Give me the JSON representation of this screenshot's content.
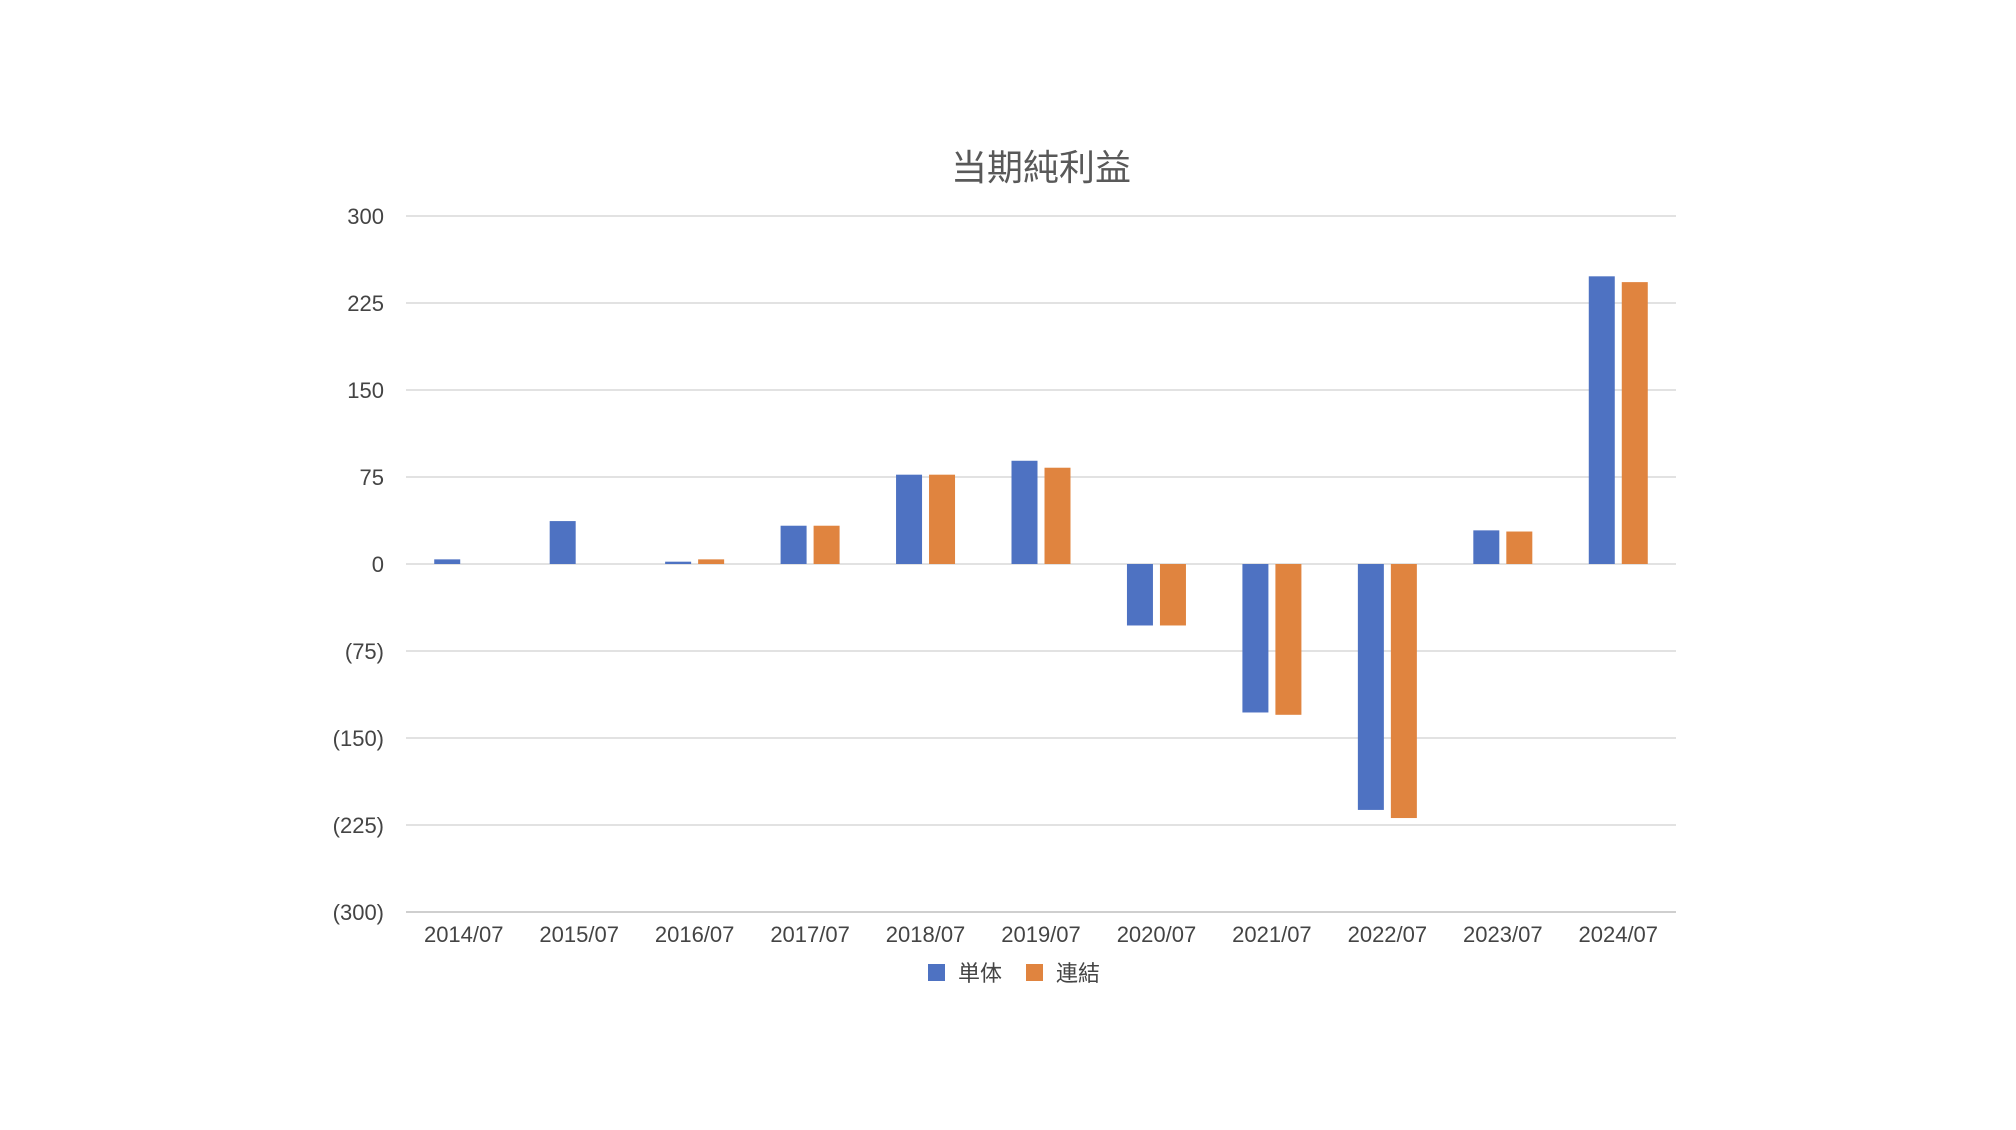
{
  "chart_data": {
    "type": "bar",
    "title": "当期純利益",
    "categories": [
      "2014/07",
      "2015/07",
      "2016/07",
      "2017/07",
      "2018/07",
      "2019/07",
      "2020/07",
      "2021/07",
      "2022/07",
      "2023/07",
      "2024/07"
    ],
    "series": [
      {
        "name": "単体",
        "color": "#4e72c2",
        "values": [
          4,
          37,
          2,
          33,
          77,
          89,
          -53,
          -128,
          -212,
          29,
          248
        ]
      },
      {
        "name": "連結",
        "color": "#e0843f",
        "values": [
          null,
          null,
          4,
          33,
          77,
          83,
          -53,
          -130,
          -219,
          28,
          243
        ]
      }
    ],
    "ylim": [
      -300,
      300
    ],
    "yticks": [
      300,
      225,
      150,
      75,
      0,
      -75,
      -150,
      -225,
      -300
    ],
    "ytick_labels": [
      "300",
      "225",
      "150",
      "75",
      "0",
      "(75)",
      "(150)",
      "(225)",
      "(300)"
    ],
    "grid": true,
    "legend": "bottom-center"
  }
}
